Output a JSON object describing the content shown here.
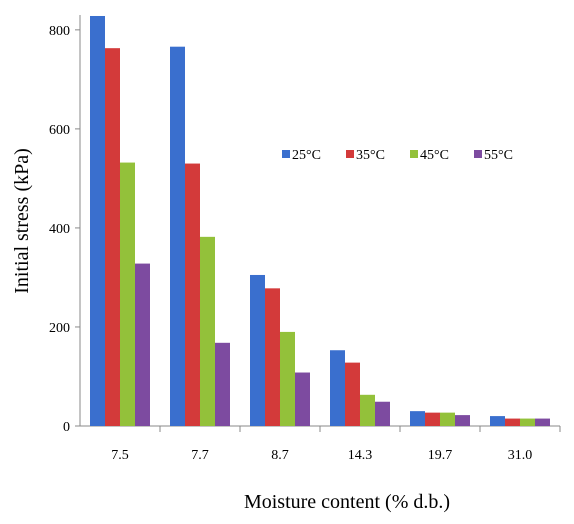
{
  "chart_data": {
    "type": "bar",
    "categories": [
      "7.5",
      "7.7",
      "8.7",
      "14.3",
      "19.7",
      "31.0"
    ],
    "series": [
      {
        "name": "25°C",
        "color": "#3a6fce",
        "values": [
          828,
          766,
          305,
          153,
          30,
          20
        ]
      },
      {
        "name": "35°C",
        "color": "#d33a3a",
        "values": [
          763,
          530,
          278,
          128,
          27,
          15
        ]
      },
      {
        "name": "45°C",
        "color": "#93c13a",
        "values": [
          532,
          382,
          190,
          63,
          27,
          15
        ]
      },
      {
        "name": "55°C",
        "color": "#7d4ba0",
        "values": [
          328,
          168,
          108,
          49,
          22,
          15
        ]
      }
    ],
    "xlabel": "Moisture content (% d.b.)",
    "ylabel": "Initial stress (kPa)",
    "ylim": [
      0,
      830
    ],
    "yticks": [
      0,
      200,
      400,
      600,
      800
    ],
    "grid": false,
    "legend_position": "right"
  }
}
